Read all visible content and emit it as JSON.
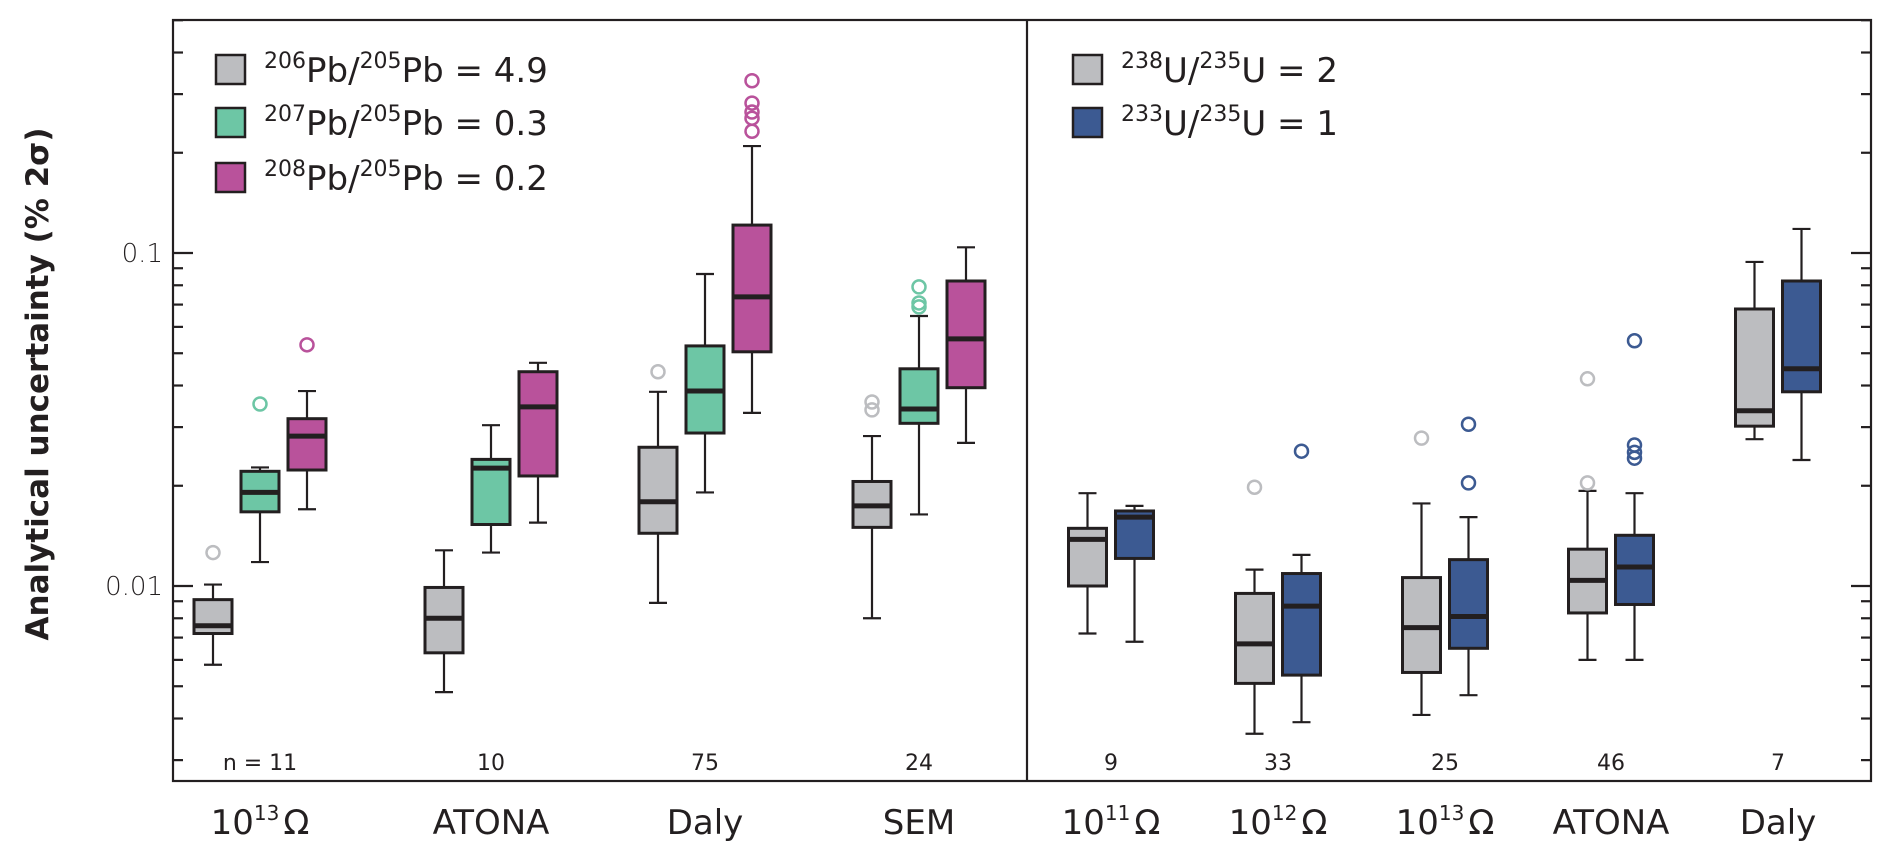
{
  "chart_data": {
    "type": "box",
    "yscale": "log",
    "ylabel": "Analytical uncertainty (% 2σ)",
    "ylim": [
      0.0027,
      0.5
    ],
    "y_ticks": [
      {
        "value": 0.1,
        "label": "0.1"
      },
      {
        "value": 0.01,
        "label": "0.01"
      }
    ],
    "y_minor_ticks": [
      0.5,
      0.4,
      0.3,
      0.2,
      0.09,
      0.08,
      0.07,
      0.06,
      0.05,
      0.04,
      0.03,
      0.02,
      0.009,
      0.008,
      0.007,
      0.006,
      0.005,
      0.004,
      0.003
    ],
    "grid": false,
    "panels": [
      {
        "name": "Pb",
        "legend_position": "top-left",
        "legend": [
          {
            "series": "206Pb",
            "sup1": "206",
            "el1": "Pb",
            "sup2": "205",
            "el2": "Pb",
            "ratio": "4.9",
            "color": "#bcbdc0"
          },
          {
            "series": "207Pb",
            "sup1": "207",
            "el1": "Pb",
            "sup2": "205",
            "el2": "Pb",
            "ratio": "0.3",
            "color": "#6dc6a5"
          },
          {
            "series": "208Pb",
            "sup1": "208",
            "el1": "Pb",
            "sup2": "205",
            "el2": "Pb",
            "ratio": "0.2",
            "color": "#b9529b"
          }
        ],
        "categories": [
          {
            "label": "10",
            "sup": "13",
            "unit": "Ω",
            "n_label": "n = 11"
          },
          {
            "label": "ATONA",
            "sup": "",
            "unit": "",
            "n_label": "10"
          },
          {
            "label": "Daly",
            "sup": "",
            "unit": "",
            "n_label": "75"
          },
          {
            "label": "SEM",
            "sup": "",
            "unit": "",
            "n_label": "24"
          }
        ],
        "series": [
          {
            "name": "206Pb/205Pb = 4.9",
            "color": "#bcbdc0",
            "boxes": [
              {
                "whislo": 0.0058,
                "q1": 0.0072,
                "med": 0.0076,
                "q3": 0.0091,
                "whishi": 0.0101,
                "fliers": [
                  0.0126
                ]
              },
              {
                "whislo": 0.0048,
                "q1": 0.0063,
                "med": 0.008,
                "q3": 0.0099,
                "whishi": 0.0128,
                "fliers": []
              },
              {
                "whislo": 0.0089,
                "q1": 0.0144,
                "med": 0.0179,
                "q3": 0.0261,
                "whishi": 0.0383,
                "fliers": [
                  0.044
                ]
              },
              {
                "whislo": 0.008,
                "q1": 0.015,
                "med": 0.0174,
                "q3": 0.0206,
                "whishi": 0.0282,
                "fliers": [
                  0.0338,
                  0.0357
                ]
              }
            ]
          },
          {
            "name": "207Pb/205Pb = 0.3",
            "color": "#6dc6a5",
            "boxes": [
              {
                "whislo": 0.0118,
                "q1": 0.0167,
                "med": 0.0191,
                "q3": 0.0221,
                "whishi": 0.0227,
                "fliers": [
                  0.0352
                ]
              },
              {
                "whislo": 0.0126,
                "q1": 0.0153,
                "med": 0.0226,
                "q3": 0.024,
                "whishi": 0.0304,
                "fliers": []
              },
              {
                "whislo": 0.0191,
                "q1": 0.0288,
                "med": 0.0385,
                "q3": 0.0526,
                "whishi": 0.0865,
                "fliers": []
              },
              {
                "whislo": 0.0164,
                "q1": 0.0308,
                "med": 0.034,
                "q3": 0.0449,
                "whishi": 0.0647,
                "fliers": [
                  0.0689,
                  0.0708,
                  0.0791
                ]
              }
            ]
          },
          {
            "name": "208Pb/205Pb = 0.2",
            "color": "#b9529b",
            "boxes": [
              {
                "whislo": 0.017,
                "q1": 0.0223,
                "med": 0.0282,
                "q3": 0.0318,
                "whishi": 0.0385,
                "fliers": [
                  0.053
                ]
              },
              {
                "whislo": 0.0155,
                "q1": 0.0214,
                "med": 0.0345,
                "q3": 0.044,
                "whishi": 0.0468,
                "fliers": []
              },
              {
                "whislo": 0.0331,
                "q1": 0.0505,
                "med": 0.0738,
                "q3": 0.1213,
                "whishi": 0.2095,
                "fliers": [
                  0.232,
                  0.254,
                  0.265,
                  0.282,
                  0.329
                ]
              },
              {
                "whislo": 0.0269,
                "q1": 0.0394,
                "med": 0.0552,
                "q3": 0.0824,
                "whishi": 0.104,
                "fliers": []
              }
            ]
          }
        ]
      },
      {
        "name": "U",
        "legend_position": "top-left",
        "legend": [
          {
            "series": "238U",
            "sup1": "238",
            "el1": "U",
            "sup2": "235",
            "el2": "U",
            "ratio": "2",
            "color": "#bcbdc0"
          },
          {
            "series": "233U",
            "sup1": "233",
            "el1": "U",
            "sup2": "235",
            "el2": "U",
            "ratio": "1",
            "color": "#3c5a92"
          }
        ],
        "categories": [
          {
            "label": "10",
            "sup": "11",
            "unit": "Ω",
            "n_label": "9"
          },
          {
            "label": "10",
            "sup": "12",
            "unit": "Ω",
            "n_label": "33"
          },
          {
            "label": "10",
            "sup": "13",
            "unit": "Ω",
            "n_label": "25"
          },
          {
            "label": "ATONA",
            "sup": "",
            "unit": "",
            "n_label": "46"
          },
          {
            "label": "Daly",
            "sup": "",
            "unit": "",
            "n_label": "7"
          }
        ],
        "series": [
          {
            "name": "238U/235U = 2",
            "color": "#bcbdc0",
            "boxes": [
              {
                "whislo": 0.0072,
                "q1": 0.01,
                "med": 0.0138,
                "q3": 0.0149,
                "whishi": 0.019,
                "fliers": []
              },
              {
                "whislo": 0.0036,
                "q1": 0.0051,
                "med": 0.0067,
                "q3": 0.0095,
                "whishi": 0.0112,
                "fliers": [
                  0.0198
                ]
              },
              {
                "whislo": 0.0041,
                "q1": 0.0055,
                "med": 0.0075,
                "q3": 0.0106,
                "whishi": 0.0177,
                "fliers": [
                  0.0278
                ]
              },
              {
                "whislo": 0.006,
                "q1": 0.0083,
                "med": 0.0104,
                "q3": 0.0129,
                "whishi": 0.0193,
                "fliers": [
                  0.0204,
                  0.0419
                ]
              },
              {
                "whislo": 0.0276,
                "q1": 0.0302,
                "med": 0.0336,
                "q3": 0.0679,
                "whishi": 0.094,
                "fliers": []
              }
            ]
          },
          {
            "name": "233U/235U = 1",
            "color": "#3c5a92",
            "boxes": [
              {
                "whislo": 0.0068,
                "q1": 0.0121,
                "med": 0.0161,
                "q3": 0.0168,
                "whishi": 0.0174,
                "fliers": []
              },
              {
                "whislo": 0.0039,
                "q1": 0.0054,
                "med": 0.0087,
                "q3": 0.0109,
                "whishi": 0.0124,
                "fliers": [
                  0.0254
                ]
              },
              {
                "whislo": 0.0047,
                "q1": 0.0065,
                "med": 0.0081,
                "q3": 0.012,
                "whishi": 0.0161,
                "fliers": [
                  0.0204,
                  0.0306
                ]
              },
              {
                "whislo": 0.006,
                "q1": 0.0088,
                "med": 0.0114,
                "q3": 0.0142,
                "whishi": 0.019,
                "fliers": [
                  0.0242,
                  0.0252,
                  0.0265,
                  0.0545
                ]
              },
              {
                "whislo": 0.0239,
                "q1": 0.0383,
                "med": 0.0449,
                "q3": 0.0824,
                "whishi": 0.1181,
                "fliers": []
              }
            ]
          }
        ]
      }
    ]
  }
}
